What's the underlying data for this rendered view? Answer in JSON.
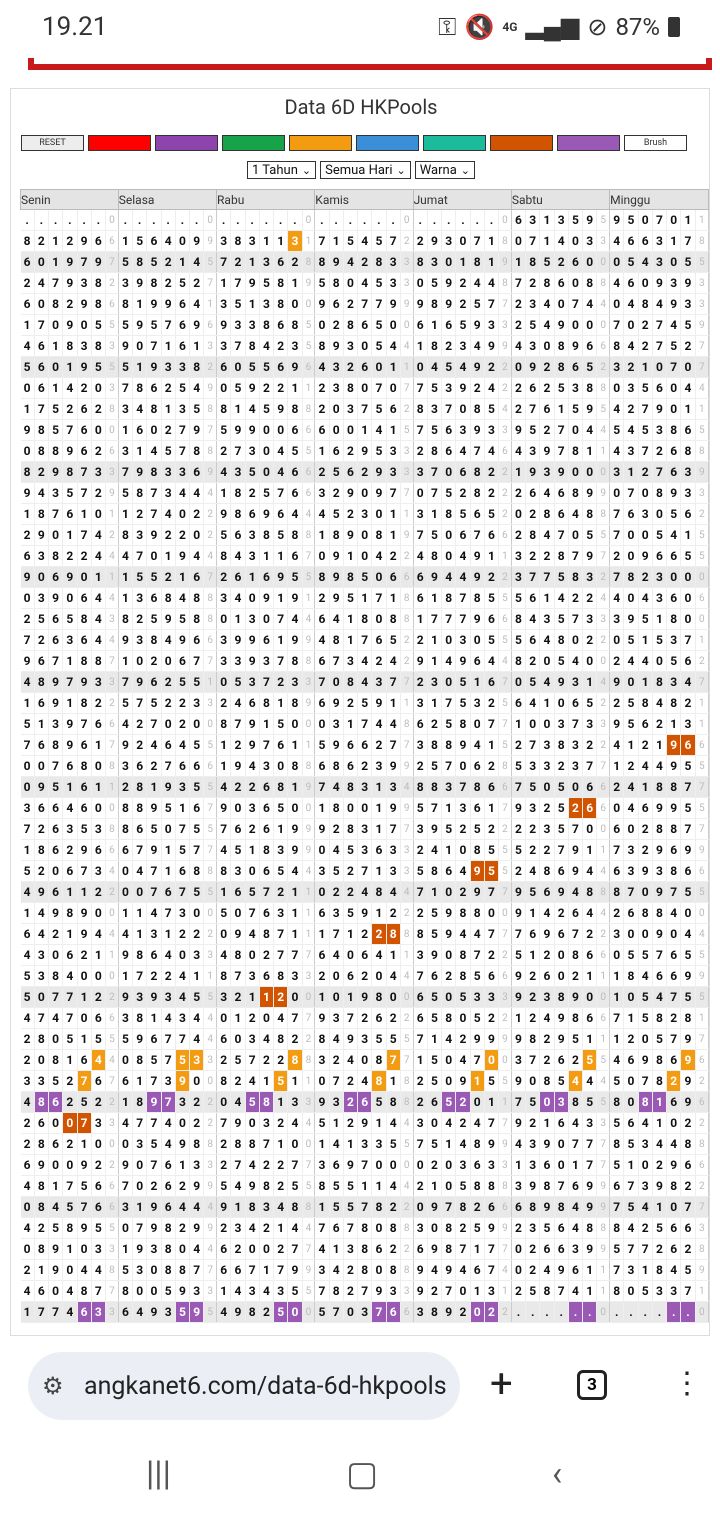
{
  "status": {
    "time": "19.21",
    "network": "4G",
    "battery": "87%"
  },
  "page": {
    "title": "Data 6D HKPools",
    "reset_label": "RESET",
    "brush_label": "Brush",
    "colors": [
      "#ff0000",
      "#8e44ad",
      "#16a34a",
      "#f39c12",
      "#3b8fd9",
      "#1abc9c",
      "#d35400",
      "#9b59b6"
    ],
    "filters": {
      "period": "1 Tahun",
      "days": "Semua Hari",
      "color": "Warna"
    },
    "days": [
      "Senin",
      "Selasa",
      "Rabu",
      "Kamis",
      "Jumat",
      "Sabtu",
      "Minggu"
    ]
  },
  "rows": [
    [
      "......",
      "......",
      "......",
      "......",
      "......",
      "631359",
      "950701"
    ],
    [
      "821296",
      "156409",
      "383113",
      "715457",
      "293071",
      "071403",
      "466317"
    ],
    [
      "601979",
      "585214",
      "721362",
      "894283",
      "830181",
      "185260",
      "054305"
    ],
    [
      "247938",
      "398252",
      "179581",
      "580453",
      "059244",
      "728608",
      "460939"
    ],
    [
      "608298",
      "819964",
      "351380",
      "962779",
      "989257",
      "234074",
      "048493"
    ],
    [
      "170905",
      "595769",
      "933868",
      "028650",
      "616593",
      "254900",
      "702745"
    ],
    [
      "461838",
      "907161",
      "378423",
      "893054",
      "182349",
      "430896",
      "842752"
    ],
    [
      "560195",
      "519338",
      "605569",
      "432601",
      "045492",
      "092865",
      "321070"
    ],
    [
      "061420",
      "786254",
      "059221",
      "238070",
      "753924",
      "262538",
      "035604"
    ],
    [
      "175262",
      "348135",
      "814598",
      "203756",
      "837085",
      "276159",
      "427901"
    ],
    [
      "985760",
      "160279",
      "599006",
      "600141",
      "756393",
      "952704",
      "545386"
    ],
    [
      "088962",
      "314578",
      "273045",
      "162953",
      "286474",
      "439781",
      "437268"
    ],
    [
      "829873",
      "798336",
      "435046",
      "256293",
      "370682",
      "193900",
      "312763"
    ],
    [
      "943572",
      "587344",
      "182576",
      "329097",
      "075282",
      "264689",
      "070893"
    ],
    [
      "187610",
      "127402",
      "986964",
      "452301",
      "318565",
      "028648",
      "763056"
    ],
    [
      "290174",
      "839220",
      "563858",
      "189081",
      "750676",
      "284705",
      "700541"
    ],
    [
      "638224",
      "470194",
      "843116",
      "091042",
      "480491",
      "322879",
      "209665"
    ],
    [
      "906901",
      "155216",
      "261695",
      "898506",
      "694492",
      "377583",
      "782300"
    ],
    [
      "039064",
      "136848",
      "340919",
      "295171",
      "618785",
      "561422",
      "404360"
    ],
    [
      "256584",
      "825958",
      "013074",
      "641808",
      "177796",
      "843573",
      "395180"
    ],
    [
      "726364",
      "938496",
      "399619",
      "481765",
      "210305",
      "564802",
      "051537"
    ],
    [
      "967188",
      "102067",
      "339378",
      "673424",
      "914964",
      "820540",
      "244056"
    ],
    [
      "489793",
      "796255",
      "053723",
      "708437",
      "230516",
      "054931",
      "901834"
    ],
    [
      "169182",
      "575223",
      "246818",
      "692591",
      "317532",
      "641065",
      "258482"
    ],
    [
      "513976",
      "427020",
      "879150",
      "031744",
      "625807",
      "100373",
      "956213"
    ],
    [
      "768961",
      "924645",
      "129761",
      "596627",
      "388941",
      "273832",
      "412196"
    ],
    [
      "007680",
      "362766",
      "194308",
      "686239",
      "257062",
      "533237",
      "124495"
    ],
    [
      "095161",
      "281935",
      "422681",
      "748313",
      "883786",
      "750506",
      "241887"
    ],
    [
      "366460",
      "889516",
      "903650",
      "180019",
      "571361",
      "932526",
      "046995"
    ],
    [
      "726353",
      "865075",
      "762619",
      "928317",
      "395252",
      "223570",
      "602887"
    ],
    [
      "186296",
      "679157",
      "451839",
      "045363",
      "241085",
      "522791",
      "732969"
    ],
    [
      "520673",
      "047168",
      "830654",
      "352713",
      "586495",
      "248694",
      "639386"
    ],
    [
      "496112",
      "007675",
      "165721",
      "022484",
      "710297",
      "956948",
      "870975"
    ],
    [
      "149890",
      "114730",
      "507631",
      "635912",
      "259880",
      "914264",
      "268840"
    ],
    [
      "642194",
      "413122",
      "094871",
      "171228",
      "859447",
      "769672",
      "300904"
    ],
    [
      "430621",
      "986403",
      "480277",
      "640641",
      "390872",
      "512086",
      "055765"
    ],
    [
      "538400",
      "172241",
      "873683",
      "206204",
      "762856",
      "926021",
      "184669"
    ],
    [
      "507712",
      "939345",
      "321120",
      "101980",
      "650533",
      "923890",
      "105475"
    ],
    [
      "474706",
      "381434",
      "012047",
      "937262",
      "658052",
      "124986",
      "715828"
    ],
    [
      "280515",
      "596774",
      "603482",
      "849355",
      "714299",
      "982951",
      "120579"
    ],
    [
      "208164",
      "085753",
      "257228",
      "324087",
      "150470",
      "372625",
      "469869"
    ],
    [
      "335276",
      "617390",
      "824151",
      "072481",
      "250915",
      "908544",
      "507829"
    ],
    [
      "486252",
      "189732",
      "045813",
      "932658",
      "265201",
      "750385",
      "808169"
    ],
    [
      "260073",
      "477402",
      "790324",
      "512914",
      "304247",
      "921643",
      "564102"
    ],
    [
      "286210",
      "035498",
      "288710",
      "141335",
      "751489",
      "439077",
      "853448"
    ],
    [
      "690092",
      "907613",
      "274227",
      "369700",
      "020363",
      "136017",
      "510296"
    ],
    [
      "481756",
      "702629",
      "549825",
      "855114",
      "210588",
      "398769",
      "673982"
    ],
    [
      "084576",
      "319644",
      "918348",
      "155782",
      "097826",
      "689849",
      "754107"
    ],
    [
      "425895",
      "079829",
      "234214",
      "767808",
      "308259",
      "235648",
      "842566"
    ],
    [
      "089103",
      "193804",
      "620027",
      "413862",
      "698717",
      "026639",
      "577262"
    ],
    [
      "219044",
      "530887",
      "667179",
      "342808",
      "949467",
      "024961",
      "731845"
    ],
    [
      "460487",
      "800593",
      "143435",
      "782793",
      "927013",
      "258741",
      "805337"
    ],
    [
      "177463",
      "649359",
      "498250",
      "570376",
      "389202",
      "......",
      "......"
    ]
  ],
  "checks": [
    [
      "0",
      "0",
      "0",
      "0",
      "0",
      "5",
      "1"
    ],
    [
      "6",
      "9",
      "1",
      "2",
      "8",
      "3",
      "8"
    ],
    [
      "7",
      "5",
      "8",
      "3",
      "9",
      "0",
      "5"
    ],
    [
      "2",
      "7",
      "9",
      "3",
      "8",
      "8",
      "3"
    ],
    [
      "6",
      "1",
      "0",
      "9",
      "7",
      "4",
      "3"
    ],
    [
      "5",
      "6",
      "5",
      "0",
      "3",
      "0",
      "9"
    ],
    [
      "3",
      "3",
      "5",
      "4",
      "9",
      "6",
      "7"
    ],
    [
      "5",
      "2",
      "6",
      "1",
      "2",
      "2",
      "7"
    ],
    [
      "3",
      "9",
      "1",
      "7",
      "2",
      "8",
      "4"
    ],
    [
      "8",
      "8",
      "8",
      "2",
      "4",
      "5",
      "1"
    ],
    [
      "0",
      "7",
      "6",
      "5",
      "3",
      "4",
      "5"
    ],
    [
      "6",
      "8",
      "5",
      "3",
      "6",
      "1",
      "8"
    ],
    [
      "3",
      "9",
      "6",
      "3",
      "2",
      "0",
      "9"
    ],
    [
      "9",
      "4",
      "6",
      "7",
      "2",
      "9",
      "3"
    ],
    [
      "1",
      "2",
      "4",
      "1",
      "2",
      "8",
      "2"
    ],
    [
      "2",
      "2",
      "8",
      "9",
      "6",
      "5",
      "5"
    ],
    [
      "4",
      "4",
      "7",
      "2",
      "1",
      "7",
      "5"
    ],
    [
      "1",
      "7",
      "5",
      "6",
      "2",
      "2",
      "0"
    ],
    [
      "4",
      "8",
      "1",
      "8",
      "5",
      "4",
      "6"
    ],
    [
      "3",
      "8",
      "4",
      "8",
      "6",
      "3",
      "0"
    ],
    [
      "4",
      "6",
      "9",
      "2",
      "5",
      "2",
      "1"
    ],
    [
      "7",
      "7",
      "8",
      "2",
      "4",
      "0",
      "2"
    ],
    [
      "3",
      "1",
      "3",
      "7",
      "7",
      "4",
      "7"
    ],
    [
      "2",
      "3",
      "9",
      "1",
      "5",
      "2",
      "1"
    ],
    [
      "6",
      "0",
      "0",
      "8",
      "7",
      "3",
      "1"
    ],
    [
      "7",
      "5",
      "1",
      "7",
      "5",
      "2",
      "6"
    ],
    [
      "8",
      "6",
      "8",
      "9",
      "8",
      "7",
      "5"
    ],
    [
      "1",
      "5",
      "9",
      "4",
      "6",
      "6",
      "7"
    ],
    [
      "0",
      "7",
      "0",
      "9",
      "7",
      "6",
      "5"
    ],
    [
      "8",
      "5",
      "9",
      "7",
      "2",
      "0",
      "7"
    ],
    [
      "6",
      "7",
      "9",
      "3",
      "5",
      "1",
      "9"
    ],
    [
      "4",
      "8",
      "4",
      "3",
      "5",
      "4",
      "6"
    ],
    [
      "2",
      "5",
      "1",
      "4",
      "7",
      "8",
      "5"
    ],
    [
      "0",
      "0",
      "1",
      "2",
      "0",
      "4",
      "0"
    ],
    [
      "4",
      "2",
      "1",
      "8",
      "7",
      "2",
      "4"
    ],
    [
      "1",
      "3",
      "7",
      "1",
      "2",
      "6",
      "5"
    ],
    [
      "0",
      "1",
      "3",
      "4",
      "6",
      "1",
      "9"
    ],
    [
      "2",
      "5",
      "0",
      "0",
      "3",
      "0",
      "5"
    ],
    [
      "6",
      "4",
      "7",
      "2",
      "2",
      "6",
      "1"
    ],
    [
      "5",
      "4",
      "2",
      "5",
      "9",
      "1",
      "7"
    ],
    [
      "4",
      "3",
      "8",
      "7",
      "0",
      "5",
      "6"
    ],
    [
      "7",
      "0",
      "1",
      "8",
      "5",
      "4",
      "2"
    ],
    [
      "2",
      "2",
      "3",
      "8",
      "1",
      "5",
      "6"
    ],
    [
      "3",
      "2",
      "4",
      "4",
      "7",
      "3",
      "2"
    ],
    [
      "0",
      "8",
      "0",
      "5",
      "9",
      "7",
      "8"
    ],
    [
      "2",
      "3",
      "7",
      "0",
      "3",
      "7",
      "6"
    ],
    [
      "6",
      "9",
      "5",
      "4",
      "8",
      "9",
      "2"
    ],
    [
      "6",
      "4",
      "8",
      "2",
      "6",
      "9",
      "7"
    ],
    [
      "5",
      "9",
      "4",
      "8",
      "9",
      "8",
      "3"
    ],
    [
      "3",
      "4",
      "7",
      "2",
      "7",
      "9",
      "8"
    ],
    [
      "8",
      "7",
      "9",
      "8",
      "4",
      "1",
      "9"
    ],
    [
      "7",
      "3",
      "5",
      "3",
      "1",
      "1",
      "1"
    ],
    [
      "3",
      "5",
      "0",
      "6",
      "2",
      "0",
      "0"
    ]
  ],
  "grey_rows": [
    2,
    7,
    12,
    17,
    22,
    27,
    32,
    37,
    42,
    47,
    52
  ],
  "highlights": [
    {
      "r": 1,
      "c": 2,
      "p": [
        5
      ],
      "k": "o"
    },
    {
      "r": 25,
      "c": 6,
      "p": [
        4,
        5
      ],
      "k": "r"
    },
    {
      "r": 28,
      "c": 5,
      "p": [
        4,
        5
      ],
      "k": "r"
    },
    {
      "r": 31,
      "c": 4,
      "p": [
        4,
        5
      ],
      "k": "r"
    },
    {
      "r": 34,
      "c": 3,
      "p": [
        4,
        5
      ],
      "k": "r"
    },
    {
      "r": 37,
      "c": 2,
      "p": [
        3,
        4
      ],
      "k": "r"
    },
    {
      "r": 40,
      "c": 0,
      "p": [
        5
      ],
      "k": "o"
    },
    {
      "r": 40,
      "c": 1,
      "p": [
        4,
        5
      ],
      "k": "o"
    },
    {
      "r": 40,
      "c": 2,
      "p": [
        5
      ],
      "k": "o"
    },
    {
      "r": 40,
      "c": 3,
      "p": [
        5
      ],
      "k": "o"
    },
    {
      "r": 40,
      "c": 4,
      "p": [
        5
      ],
      "k": "o"
    },
    {
      "r": 40,
      "c": 5,
      "p": [
        5
      ],
      "k": "o"
    },
    {
      "r": 40,
      "c": 6,
      "p": [
        5
      ],
      "k": "o"
    },
    {
      "r": 41,
      "c": 0,
      "p": [
        4
      ],
      "k": "o"
    },
    {
      "r": 41,
      "c": 1,
      "p": [
        4
      ],
      "k": "o"
    },
    {
      "r": 41,
      "c": 2,
      "p": [
        4
      ],
      "k": "o"
    },
    {
      "r": 41,
      "c": 3,
      "p": [
        4
      ],
      "k": "o"
    },
    {
      "r": 41,
      "c": 4,
      "p": [
        4
      ],
      "k": "o"
    },
    {
      "r": 41,
      "c": 5,
      "p": [
        4
      ],
      "k": "o"
    },
    {
      "r": 41,
      "c": 6,
      "p": [
        4
      ],
      "k": "o"
    },
    {
      "r": 42,
      "c": 0,
      "p": [
        1,
        2
      ],
      "k": "p"
    },
    {
      "r": 42,
      "c": 1,
      "p": [
        2,
        3
      ],
      "k": "p"
    },
    {
      "r": 42,
      "c": 2,
      "p": [
        2,
        3
      ],
      "k": "p"
    },
    {
      "r": 42,
      "c": 3,
      "p": [
        2,
        3
      ],
      "k": "p"
    },
    {
      "r": 42,
      "c": 4,
      "p": [
        2,
        3
      ],
      "k": "p"
    },
    {
      "r": 42,
      "c": 5,
      "p": [
        2,
        3
      ],
      "k": "p"
    },
    {
      "r": 42,
      "c": 6,
      "p": [
        2,
        3
      ],
      "k": "p"
    },
    {
      "r": 43,
      "c": 0,
      "p": [
        3,
        4
      ],
      "k": "r"
    },
    {
      "r": 52,
      "c": 0,
      "p": [
        4,
        5
      ],
      "k": "p"
    },
    {
      "r": 52,
      "c": 1,
      "p": [
        4,
        5
      ],
      "k": "p"
    },
    {
      "r": 52,
      "c": 2,
      "p": [
        4,
        5
      ],
      "k": "p"
    },
    {
      "r": 52,
      "c": 3,
      "p": [
        4,
        5
      ],
      "k": "p"
    },
    {
      "r": 52,
      "c": 4,
      "p": [
        4,
        5
      ],
      "k": "p"
    },
    {
      "r": 52,
      "c": 5,
      "p": [
        4,
        5
      ],
      "k": "p"
    },
    {
      "r": 52,
      "c": 6,
      "p": [
        4,
        5
      ],
      "k": "p"
    }
  ],
  "browser": {
    "url": "angkanet6.com/data-6d-hkpools",
    "tab_count": "3"
  }
}
